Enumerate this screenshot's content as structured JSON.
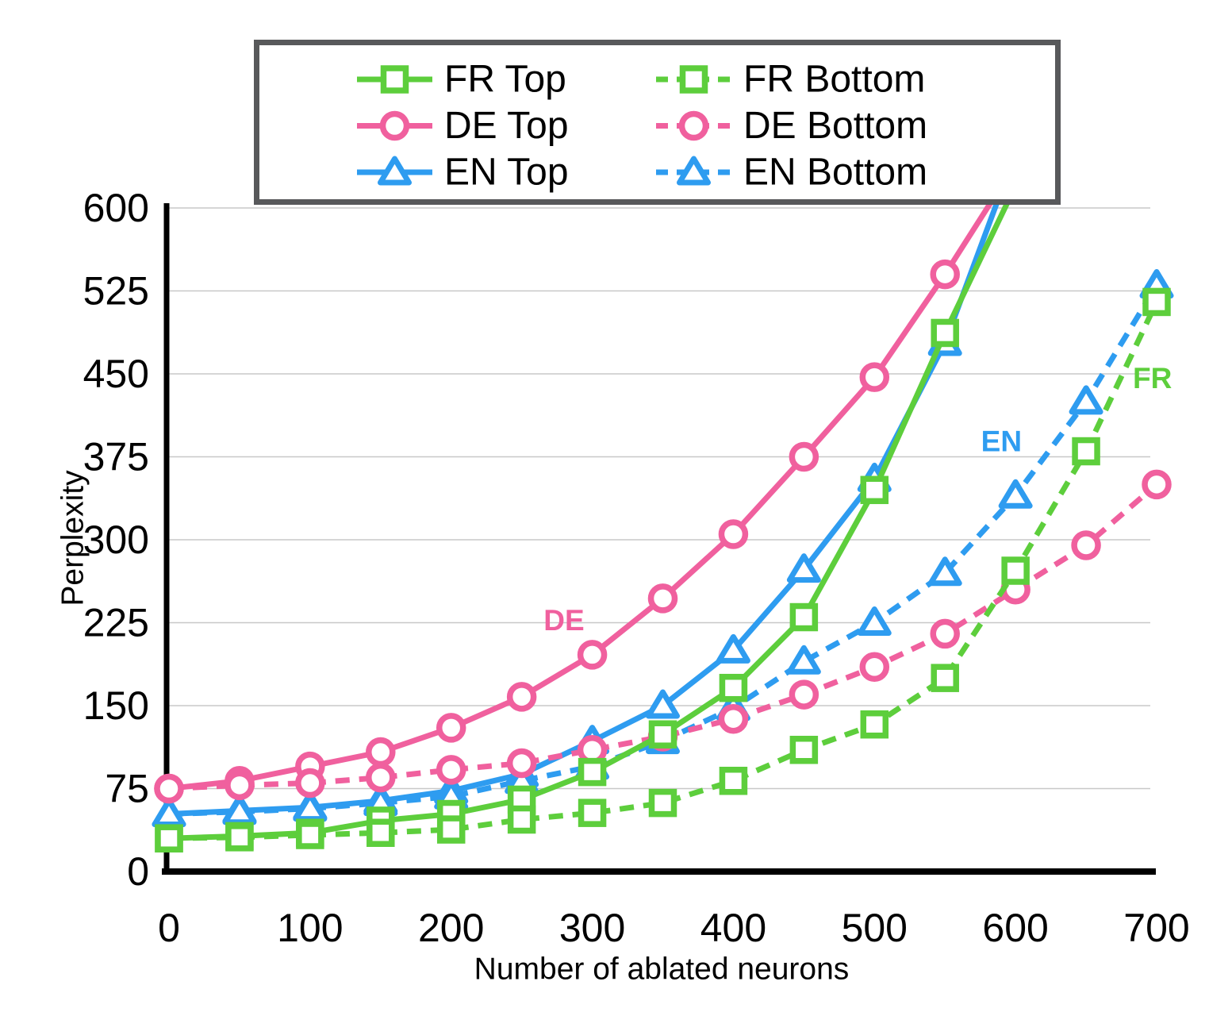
{
  "chart_data": {
    "type": "line",
    "title": "",
    "xlabel": "Number of ablated neurons",
    "ylabel": "Perplexity",
    "xlim": [
      0,
      700
    ],
    "ylim": [
      0,
      600
    ],
    "x_ticks": [
      0,
      100,
      200,
      300,
      400,
      500,
      600,
      700
    ],
    "y_ticks": [
      600,
      525,
      450,
      375,
      300,
      225,
      150,
      75,
      0
    ],
    "grid": "horizontal-only",
    "legend_position": "top-center",
    "series": [
      {
        "name": "FR Top",
        "color": "#5dce3c",
        "style": "solid",
        "marker": "square",
        "x": [
          0,
          50,
          100,
          150,
          200,
          250,
          300,
          350,
          400,
          450,
          500,
          550,
          600
        ],
        "values": [
          30,
          32,
          35,
          46,
          52,
          65,
          90,
          124,
          166,
          230,
          345,
          487,
          620
        ]
      },
      {
        "name": "DE Top",
        "color": "#f0609e",
        "style": "solid",
        "marker": "circle",
        "x": [
          0,
          50,
          100,
          150,
          200,
          250,
          300,
          350,
          400,
          450,
          500,
          550,
          600
        ],
        "values": [
          75,
          82,
          95,
          108,
          130,
          158,
          196,
          247,
          305,
          375,
          447,
          540,
          640
        ]
      },
      {
        "name": "EN Top",
        "color": "#2e9cf0",
        "style": "solid",
        "marker": "triangle",
        "x": [
          0,
          50,
          100,
          150,
          200,
          250,
          300,
          350,
          400,
          450,
          500,
          550,
          600
        ],
        "values": [
          52,
          55,
          58,
          64,
          73,
          88,
          118,
          150,
          200,
          273,
          355,
          478,
          650
        ]
      },
      {
        "name": "FR Bottom",
        "color": "#5dce3c",
        "style": "dashed",
        "marker": "square",
        "x": [
          0,
          50,
          100,
          150,
          200,
          250,
          300,
          350,
          400,
          450,
          500,
          550,
          600,
          650,
          700
        ],
        "values": [
          30,
          31,
          33,
          35,
          38,
          47,
          53,
          62,
          82,
          110,
          133,
          175,
          272,
          380,
          515
        ]
      },
      {
        "name": "DE Bottom",
        "color": "#f0609e",
        "style": "dashed",
        "marker": "circle",
        "x": [
          0,
          50,
          100,
          150,
          200,
          250,
          300,
          350,
          400,
          450,
          500,
          550,
          600,
          650,
          700
        ],
        "values": [
          75,
          78,
          80,
          85,
          92,
          98,
          110,
          122,
          138,
          160,
          185,
          215,
          255,
          295,
          350
        ]
      },
      {
        "name": "EN Bottom",
        "color": "#2e9cf0",
        "style": "dashed",
        "marker": "triangle",
        "x": [
          0,
          50,
          100,
          150,
          200,
          250,
          300,
          350,
          400,
          450,
          500,
          550,
          600,
          650,
          700
        ],
        "values": [
          52,
          54,
          57,
          62,
          68,
          82,
          95,
          118,
          148,
          190,
          225,
          270,
          340,
          425,
          530
        ]
      }
    ],
    "annotations": [
      {
        "text": "DE",
        "x": 280,
        "y": 227,
        "color": "#f0609e"
      },
      {
        "text": "EN",
        "x": 590,
        "y": 389,
        "color": "#2e9cf0"
      },
      {
        "text": "FR",
        "x": 697,
        "y": 446,
        "color": "#5dce3c"
      }
    ]
  },
  "colors": {
    "fr_green": "#5dce3c",
    "de_pink": "#f0609e",
    "en_blue": "#2e9cf0",
    "gridline": "#c8c8c8",
    "axis": "#000000",
    "legend_border": "#58595b",
    "background": "#ffffff"
  }
}
